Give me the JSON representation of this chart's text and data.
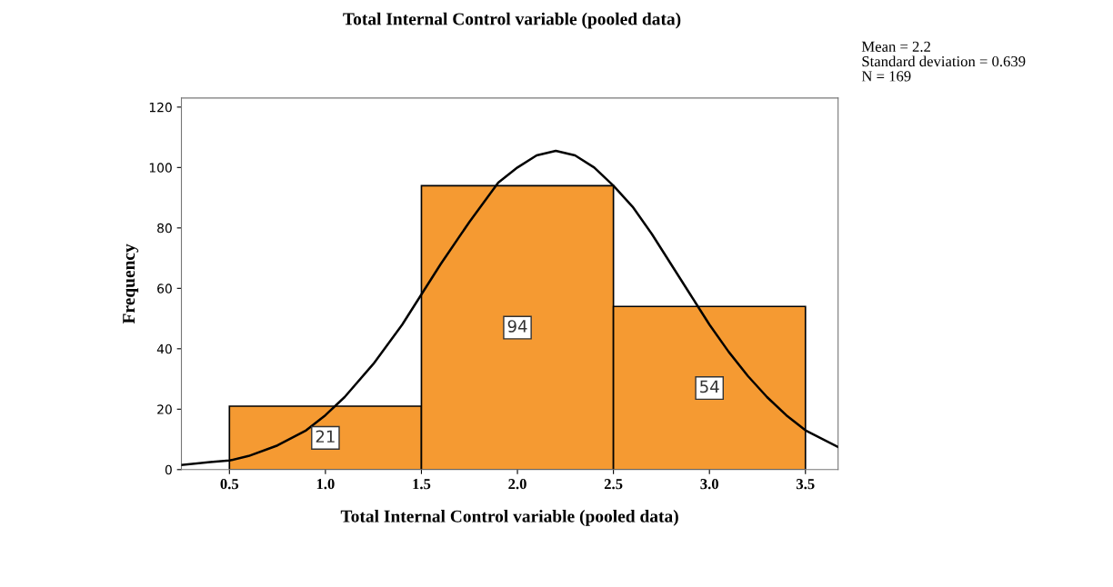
{
  "chart_data": {
    "type": "histogram",
    "title": "Total Internal Control variable (pooled data)",
    "xlabel": "Total Internal Control variable (pooled data)",
    "ylabel": "Frequency",
    "bins": [
      0.5,
      1.5,
      2.5,
      3.5
    ],
    "series": [
      {
        "values": [
          21,
          94,
          54
        ],
        "value_labels": [
          "21",
          "94",
          "54"
        ],
        "color": "#f59a32"
      },
      {
        "type": "line",
        "color": "#000000",
        "x": [
          0.25,
          0.4,
          0.5,
          0.6,
          0.75,
          0.9,
          1.0,
          1.1,
          1.25,
          1.4,
          1.5,
          1.6,
          1.75,
          1.9,
          2.0,
          2.1,
          2.2,
          2.3,
          2.4,
          2.5,
          2.6,
          2.7,
          2.8,
          2.9,
          3.0,
          3.1,
          3.2,
          3.3,
          3.4,
          3.5,
          3.67
        ],
        "values": [
          1.5,
          2.5,
          3,
          4.5,
          8,
          13,
          18,
          24,
          35,
          48,
          58,
          68,
          82,
          95,
          100,
          104,
          105.5,
          104,
          100,
          94,
          87,
          78,
          68,
          58,
          48,
          39,
          31,
          24,
          18,
          13,
          7.5
        ]
      }
    ],
    "xlim": [
      0.25,
      3.67
    ],
    "ylim": [
      0,
      123
    ],
    "xticks": [
      {
        "value": 0.5,
        "label": "0.5"
      },
      {
        "value": 1.0,
        "label": "1.0"
      },
      {
        "value": 1.5,
        "label": "1.5"
      },
      {
        "value": 2.0,
        "label": "2.0"
      },
      {
        "value": 2.5,
        "label": "2.5"
      },
      {
        "value": 3.0,
        "label": "3.0"
      },
      {
        "value": 3.5,
        "label": "3.5"
      }
    ],
    "yticks": [
      0,
      20,
      40,
      60,
      80,
      100,
      120
    ],
    "annotations": [
      "Mean = 2.2\nStandard deviation = 0.639\nN = 169"
    ]
  }
}
